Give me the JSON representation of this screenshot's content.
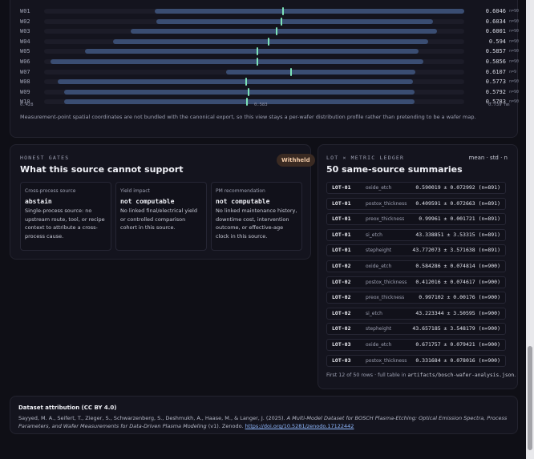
{
  "distribution": {
    "axis": {
      "min_label": "0.428",
      "mid_label": "0.583",
      "max_label": "0.739 nm",
      "min": 0.428,
      "max": 0.739
    },
    "wafers": [
      {
        "id": "W01",
        "low": 0.51,
        "high": 0.739,
        "mean_value": 0.6046,
        "mean": "0.6046",
        "n": "n=90"
      },
      {
        "id": "W02",
        "low": 0.511,
        "high": 0.716,
        "mean_value": 0.6034,
        "mean": "0.6034",
        "n": "n=90"
      },
      {
        "id": "W03",
        "low": 0.492,
        "high": 0.719,
        "mean_value": 0.6001,
        "mean": "0.6001",
        "n": "n=90"
      },
      {
        "id": "W04",
        "low": 0.479,
        "high": 0.712,
        "mean_value": 0.594,
        "mean": "0.594",
        "n": "n=90"
      },
      {
        "id": "W05",
        "low": 0.458,
        "high": 0.705,
        "mean_value": 0.5857,
        "mean": "0.5857",
        "n": "n=90"
      },
      {
        "id": "W06",
        "low": 0.433,
        "high": 0.709,
        "mean_value": 0.5856,
        "mean": "0.5856",
        "n": "n=90"
      },
      {
        "id": "W07",
        "low": 0.563,
        "high": 0.703,
        "mean_value": 0.6107,
        "mean": "0.6107",
        "n": "n=9"
      },
      {
        "id": "W08",
        "low": 0.438,
        "high": 0.701,
        "mean_value": 0.5773,
        "mean": "0.5773",
        "n": "n=90"
      },
      {
        "id": "W09",
        "low": 0.443,
        "high": 0.702,
        "mean_value": 0.5792,
        "mean": "0.5792",
        "n": "n=90"
      },
      {
        "id": "W10",
        "low": 0.443,
        "high": 0.702,
        "mean_value": 0.5783,
        "mean": "0.5783",
        "n": "n=90"
      }
    ],
    "note": "Measurement-point spatial coordinates are not bundled with the canonical export, so this view stays a per-wafer distribution profile rather than pretending to be a wafer map."
  },
  "gates": {
    "eyebrow": "HONEST GATES",
    "title": "What this source cannot support",
    "badge": "Withheld",
    "cards": [
      {
        "label": "Cross-process source",
        "verdict": "abstain",
        "text": "Single-process source: no upstream route, tool, or recipe context to attribute a cross-process cause."
      },
      {
        "label": "Yield impact",
        "verdict": "not computable",
        "text": "No linked final/electrical yield or controlled comparison cohort in this source."
      },
      {
        "label": "PM recommendation",
        "verdict": "not computable",
        "text": "No linked maintenance history, downtime cost, intervention outcome, or effective-age clock in this source."
      }
    ]
  },
  "ledger": {
    "eyebrow": "LOT × METRIC LEDGER",
    "title": "50 same-source summaries",
    "header_right": "mean · std · n",
    "rows": [
      {
        "lot": "LOT-01",
        "metric": "oxide_etch",
        "value": "0.590019 ± 0.072992 (n=891)"
      },
      {
        "lot": "LOT-01",
        "metric": "postox_thickness",
        "value": "0.409591 ± 0.072663 (n=891)"
      },
      {
        "lot": "LOT-01",
        "metric": "preox_thickness",
        "value": "0.99961 ± 0.001721 (n=891)"
      },
      {
        "lot": "LOT-01",
        "metric": "si_etch",
        "value": "43.338851 ± 3.53315 (n=891)"
      },
      {
        "lot": "LOT-01",
        "metric": "stepheight",
        "value": "43.772073 ± 3.571638 (n=891)"
      },
      {
        "lot": "LOT-02",
        "metric": "oxide_etch",
        "value": "0.584286 ± 0.074814 (n=900)"
      },
      {
        "lot": "LOT-02",
        "metric": "postox_thickness",
        "value": "0.412016 ± 0.074617 (n=900)"
      },
      {
        "lot": "LOT-02",
        "metric": "preox_thickness",
        "value": "0.997102 ± 0.00176 (n=900)"
      },
      {
        "lot": "LOT-02",
        "metric": "si_etch",
        "value": "43.223344 ± 3.50595 (n=900)"
      },
      {
        "lot": "LOT-02",
        "metric": "stepheight",
        "value": "43.657185 ± 3.548179 (n=900)"
      },
      {
        "lot": "LOT-03",
        "metric": "oxide_etch",
        "value": "0.671757 ± 0.079421 (n=900)"
      },
      {
        "lot": "LOT-03",
        "metric": "postox_thickness",
        "value": "0.331684 ± 0.078016 (n=900)"
      }
    ],
    "footer_prefix": "First 12 of 50 rows · full table in ",
    "footer_file": "artifacts/bosch-wafer-analysis.json",
    "footer_suffix": "."
  },
  "attribution": {
    "title": "Dataset attribution (CC BY 4.0)",
    "authors": "Sayyed, M. A., Seifert, T., Zieger, S., Schwarzenberg, S., Deshmukh, A., Haase, M., & Langer, J. (2025). ",
    "work": "A Multi-Model Dataset for BOSCH Plasma-Etching: Optical Emission Spectra, Process Parameters, and Wafer Measurements for Data-Driven Plasma Modeling",
    "rest": " (v1). Zenodo. ",
    "doi": "https://doi.org/10.5281/zenodo.17122442"
  }
}
